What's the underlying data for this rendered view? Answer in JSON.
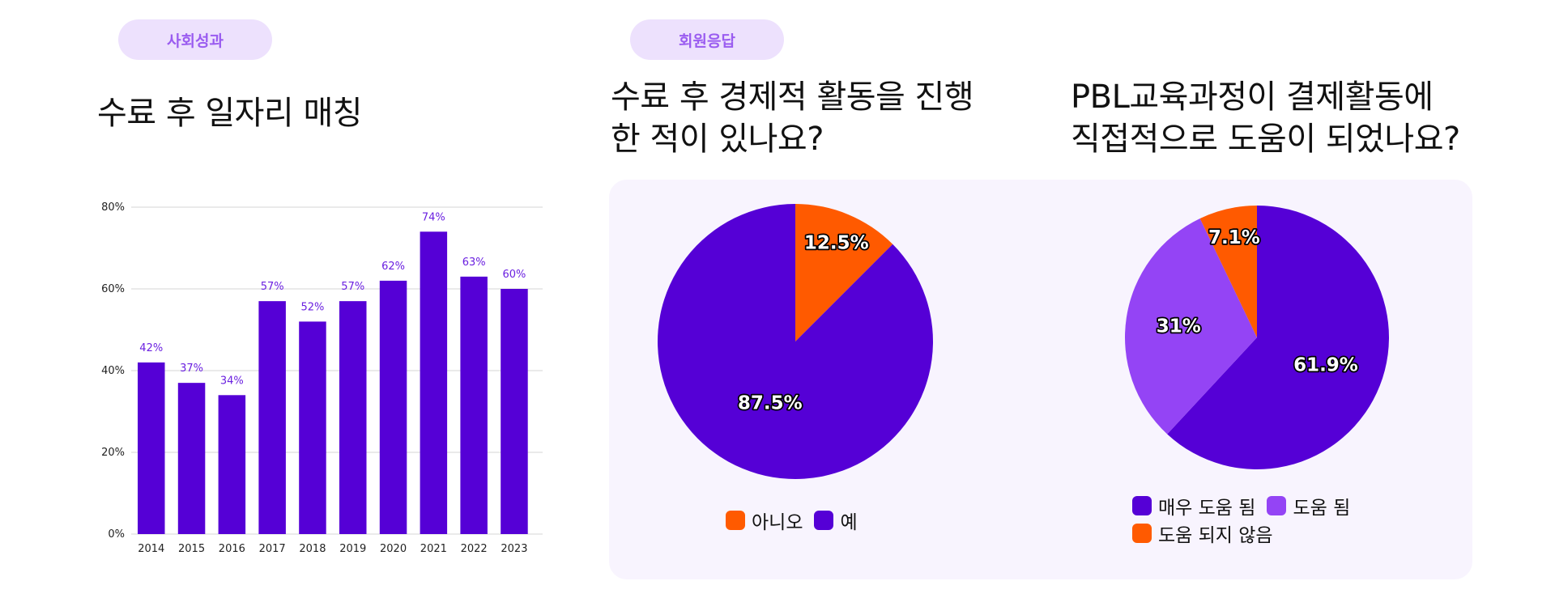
{
  "badges": {
    "social": "사회성과",
    "member": "회원응답"
  },
  "titles": {
    "bar": "수료 후 일자리 매칭",
    "pie1": "수료 후 경제적 활동을 진행\n한 적이 있나요?",
    "pie2": "PBL교육과정이 결제활동에\n직접적으로 도움이 되었나요?"
  },
  "colors": {
    "bar": "#5500d6",
    "value_label": "#6a1fe0",
    "orange": "#ff5a00",
    "deep_purple": "#5500d6",
    "light_purple": "#9444f5",
    "panel_bg": "#f8f4fe",
    "badge_bg": "#ede1fd",
    "badge_text": "#9a5cf0"
  },
  "chart_data": [
    {
      "type": "bar",
      "categories": [
        "2014",
        "2015",
        "2016",
        "2017",
        "2018",
        "2019",
        "2020",
        "2021",
        "2022",
        "2023"
      ],
      "values": [
        42,
        37,
        34,
        57,
        52,
        57,
        62,
        74,
        63,
        60
      ],
      "value_labels": [
        "42%",
        "37%",
        "34%",
        "57%",
        "52%",
        "57%",
        "62%",
        "74%",
        "63%",
        "60%"
      ],
      "y_ticks": [
        "0%",
        "20%",
        "40%",
        "60%",
        "80%"
      ],
      "ylim": [
        0,
        80
      ],
      "grid": true,
      "title": "",
      "xlabel": "",
      "ylabel": ""
    },
    {
      "type": "pie",
      "labels": [
        "아니오",
        "예"
      ],
      "values": [
        12.5,
        87.5
      ],
      "value_labels": [
        "12.5%",
        "87.5%"
      ],
      "colors": [
        "#ff5a00",
        "#5500d6"
      ],
      "legend": "bottom"
    },
    {
      "type": "pie",
      "labels": [
        "매우 도움 됨",
        "도움 됨",
        "도움 되지 않음"
      ],
      "values": [
        61.9,
        31,
        7.1
      ],
      "value_labels": [
        "61.9%",
        "31%",
        "7.1%"
      ],
      "colors": [
        "#5500d6",
        "#9444f5",
        "#ff5a00"
      ],
      "legend": "bottom"
    }
  ]
}
